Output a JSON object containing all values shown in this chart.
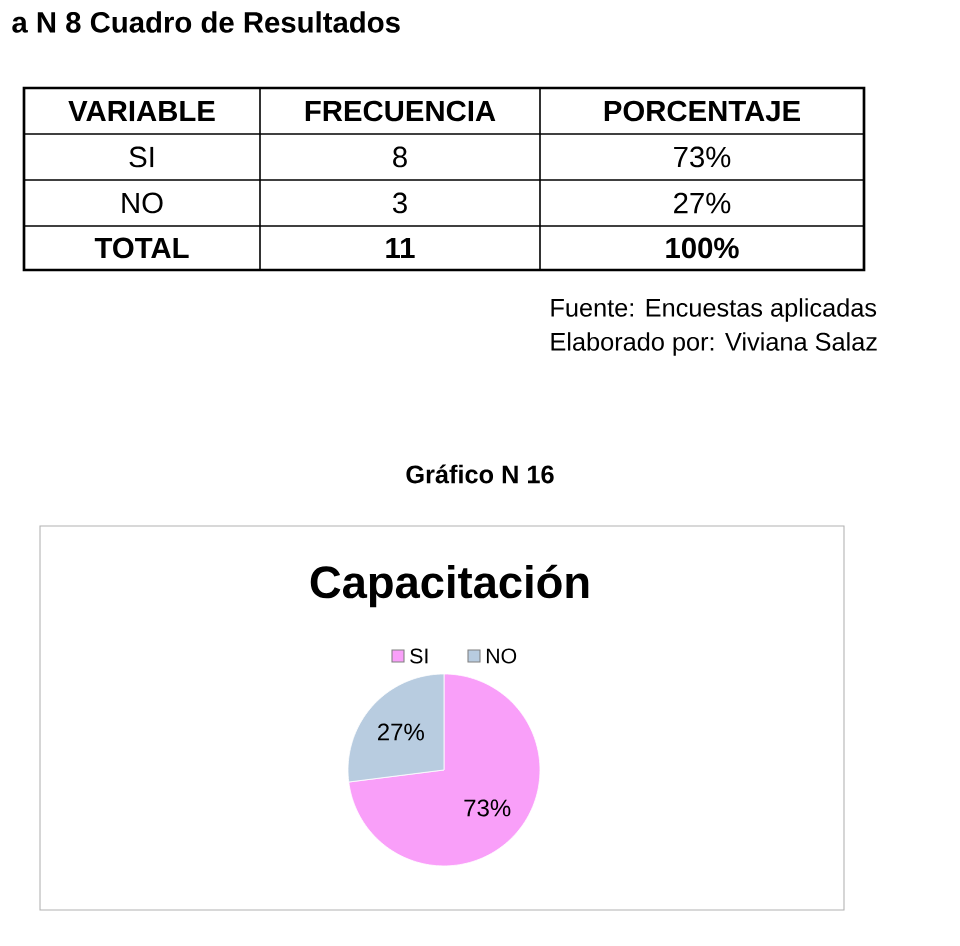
{
  "chart_data": [
    {
      "type": "other",
      "title": "a N 8 Cuadro de Resultados",
      "annotations": [
        "VARIABLE",
        "FRECUENCIA",
        "PORCENTAJE",
        "SI",
        "8",
        "73%",
        "NO",
        "3",
        "27%",
        "TOTAL",
        "11",
        "100%",
        "Fuente: Encuestas aplicadas",
        "Elaborado por: Viviana Salaz"
      ]
    },
    {
      "type": "pie",
      "subtitle": "Gráfico N 16",
      "title": "Capacitación",
      "categories": [
        "SI",
        "NO"
      ],
      "values": [
        73,
        27
      ],
      "colors": [
        "#f99ff9",
        "#b8cce0"
      ],
      "value_labels": [
        "73%",
        "27%"
      ],
      "legend": "top"
    }
  ]
}
